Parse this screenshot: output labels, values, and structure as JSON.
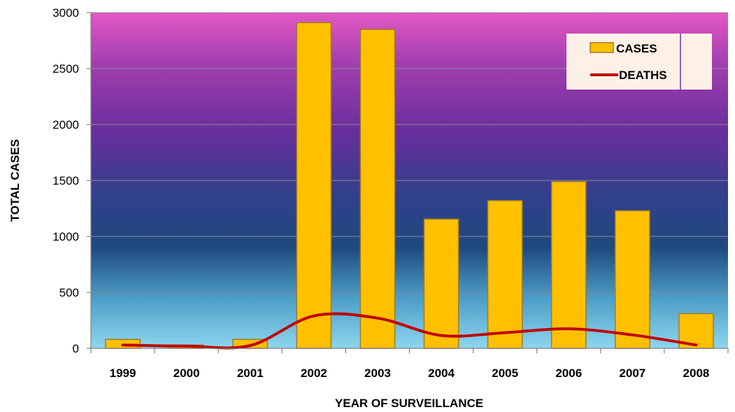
{
  "chart_data": {
    "type": "bar",
    "title": "",
    "xlabel": "YEAR OF SURVEILLANCE",
    "ylabel": "TOTAL CASES",
    "ylim": [
      0,
      3000
    ],
    "yticks": [
      0,
      500,
      1000,
      1500,
      2000,
      2500,
      3000
    ],
    "categories": [
      "1999",
      "2000",
      "2001",
      "2002",
      "2003",
      "2004",
      "2005",
      "2006",
      "2007",
      "2008"
    ],
    "series": [
      {
        "name": "CASES",
        "kind": "bar",
        "color": "#FFC000",
        "values": [
          80,
          30,
          80,
          2910,
          2850,
          1155,
          1320,
          1490,
          1230,
          310
        ]
      },
      {
        "name": "DEATHS",
        "kind": "line",
        "color": "#C00000",
        "values": [
          30,
          20,
          25,
          290,
          270,
          115,
          140,
          175,
          120,
          30
        ]
      }
    ],
    "grid": true,
    "legend": "top-right"
  }
}
